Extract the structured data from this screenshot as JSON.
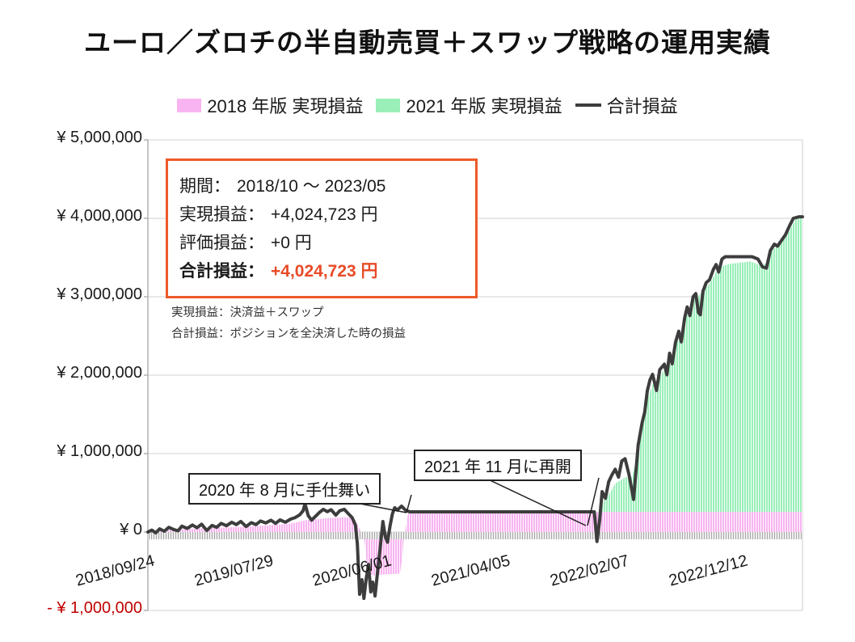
{
  "title": "ユーロ／ズロチの半自動売買＋スワップ戦略の運用実績",
  "legend": [
    {
      "label": "2018 年版 実現損益",
      "type": "area",
      "color": "#f8b4f0"
    },
    {
      "label": "2021 年版 実現損益",
      "type": "area",
      "color": "#9aefb9"
    },
    {
      "label": "合計損益",
      "type": "line",
      "color": "#3d3d3d"
    }
  ],
  "info_box": {
    "rows": [
      {
        "label": "期間：",
        "value": "2018/10 ～ 2023/05",
        "highlight": false
      },
      {
        "label": "実現損益：",
        "value": "+4,024,723 円",
        "highlight": false
      },
      {
        "label": "評価損益：",
        "value": "+0 円",
        "highlight": false
      },
      {
        "label": "合計損益：",
        "value": "+4,024,723 円",
        "highlight": true
      }
    ]
  },
  "notes": [
    "実現損益：決済益＋スワップ",
    "合計損益：ポジションを全決済した時の損益"
  ],
  "callouts": [
    {
      "text": "2020 年 8 月に手仕舞い"
    },
    {
      "text": "2021 年 11 月に再開"
    }
  ],
  "colors": {
    "pink": "#f8b4f0",
    "green": "#9aefb9",
    "line": "#3d3d3d",
    "grid": "#d9d9d9",
    "axis": "#a6a6a6",
    "hatch": "#a8a8a8",
    "box_border": "#ed5a28",
    "highlight_value": "#e84b28",
    "neg_label": "#c00000"
  },
  "chart_data": {
    "type": "area+line",
    "title": "ユーロ／ズロチの半自動売買＋スワップ戦略の運用実績",
    "ylim": [
      -1000000,
      5000000
    ],
    "grid": "horizontal",
    "legend_position": "top-center",
    "y_axis": {
      "ticks": [
        {
          "label": "¥ 5,000,000",
          "value": 5000000,
          "red": false
        },
        {
          "label": "¥ 4,000,000",
          "value": 4000000,
          "red": false
        },
        {
          "label": "¥ 3,000,000",
          "value": 3000000,
          "red": false
        },
        {
          "label": "¥ 2,000,000",
          "value": 2000000,
          "red": false
        },
        {
          "label": "¥ 1,000,000",
          "value": 1000000,
          "red": false
        },
        {
          "label": "¥ 0",
          "value": 0,
          "red": false
        },
        {
          "label": "- ¥ 1,000,000",
          "value": -1000000,
          "red": true
        }
      ]
    },
    "x_axis": {
      "ticks": [
        "2018/09/24",
        "2019/07/29",
        "2020/06/01",
        "2021/04/05",
        "2022/02/07",
        "2022/12/12"
      ]
    },
    "series": [
      {
        "name": "2018年版 実現損益",
        "type": "area",
        "pattern": "pink",
        "base": 0,
        "points": [
          [
            0.0,
            10000
          ],
          [
            0.03,
            25000
          ],
          [
            0.06,
            40000
          ],
          [
            0.09,
            50000
          ],
          [
            0.12,
            60000
          ],
          [
            0.15,
            70000
          ],
          [
            0.18,
            85000
          ],
          [
            0.21,
            100000
          ],
          [
            0.225,
            120000
          ],
          [
            0.24,
            150000
          ],
          [
            0.26,
            165000
          ],
          [
            0.28,
            180000
          ],
          [
            0.3,
            190000
          ],
          [
            0.31,
            180000
          ],
          [
            0.317,
            150000
          ],
          [
            0.322,
            60000
          ],
          [
            0.326,
            0
          ],
          [
            0.329,
            0
          ],
          [
            0.332,
            -200000
          ],
          [
            0.336,
            -520000
          ],
          [
            0.345,
            -555000
          ],
          [
            0.355,
            -545000
          ],
          [
            0.365,
            -540000
          ],
          [
            0.375,
            -535000
          ],
          [
            0.385,
            -530000
          ],
          [
            0.389,
            -300000
          ],
          [
            0.391,
            -80000
          ],
          [
            0.393,
            0
          ],
          [
            0.398,
            258000
          ],
          [
            1.0,
            258000
          ]
        ]
      },
      {
        "name": "2021年版 実現損益",
        "type": "area",
        "pattern": "green",
        "base": 258000,
        "points": [
          [
            0.688,
            258000
          ],
          [
            0.692,
            300000
          ],
          [
            0.698,
            420000
          ],
          [
            0.706,
            500000
          ],
          [
            0.714,
            620000
          ],
          [
            0.722,
            660000
          ],
          [
            0.73,
            700000
          ],
          [
            0.74,
            700000
          ],
          [
            0.748,
            1020000
          ],
          [
            0.756,
            1400000
          ],
          [
            0.764,
            1720000
          ],
          [
            0.772,
            1900000
          ],
          [
            0.78,
            1950000
          ],
          [
            0.79,
            2090000
          ],
          [
            0.8,
            2150000
          ],
          [
            0.81,
            2480000
          ],
          [
            0.82,
            2650000
          ],
          [
            0.83,
            2940000
          ],
          [
            0.84,
            3000000
          ],
          [
            0.85,
            3090000
          ],
          [
            0.86,
            3190000
          ],
          [
            0.87,
            3340000
          ],
          [
            0.88,
            3400000
          ],
          [
            0.89,
            3420000
          ],
          [
            0.9,
            3430000
          ],
          [
            0.91,
            3440000
          ],
          [
            0.92,
            3450000
          ],
          [
            0.93,
            3420000
          ],
          [
            0.94,
            3380000
          ],
          [
            0.95,
            3540000
          ],
          [
            0.96,
            3650000
          ],
          [
            0.97,
            3720000
          ],
          [
            0.98,
            3840000
          ],
          [
            0.99,
            3990000
          ],
          [
            1.0,
            4010000
          ]
        ]
      },
      {
        "name": "合計損益",
        "type": "line",
        "color": "#3d3d3d",
        "points": [
          [
            0.0,
            0
          ],
          [
            0.006,
            25000
          ],
          [
            0.012,
            -10000
          ],
          [
            0.018,
            40000
          ],
          [
            0.025,
            10000
          ],
          [
            0.032,
            60000
          ],
          [
            0.04,
            30000
          ],
          [
            0.046,
            15000
          ],
          [
            0.052,
            75000
          ],
          [
            0.06,
            45000
          ],
          [
            0.068,
            90000
          ],
          [
            0.075,
            55000
          ],
          [
            0.082,
            100000
          ],
          [
            0.09,
            20000
          ],
          [
            0.098,
            85000
          ],
          [
            0.105,
            60000
          ],
          [
            0.112,
            110000
          ],
          [
            0.12,
            80000
          ],
          [
            0.128,
            125000
          ],
          [
            0.135,
            95000
          ],
          [
            0.142,
            135000
          ],
          [
            0.15,
            70000
          ],
          [
            0.158,
            120000
          ],
          [
            0.165,
            95000
          ],
          [
            0.172,
            140000
          ],
          [
            0.18,
            115000
          ],
          [
            0.188,
            150000
          ],
          [
            0.195,
            110000
          ],
          [
            0.202,
            155000
          ],
          [
            0.21,
            125000
          ],
          [
            0.218,
            165000
          ],
          [
            0.225,
            185000
          ],
          [
            0.232,
            220000
          ],
          [
            0.237,
            270000
          ],
          [
            0.24,
            360000
          ],
          [
            0.245,
            210000
          ],
          [
            0.25,
            150000
          ],
          [
            0.256,
            200000
          ],
          [
            0.262,
            250000
          ],
          [
            0.268,
            290000
          ],
          [
            0.274,
            260000
          ],
          [
            0.28,
            285000
          ],
          [
            0.287,
            215000
          ],
          [
            0.293,
            270000
          ],
          [
            0.3,
            290000
          ],
          [
            0.306,
            235000
          ],
          [
            0.312,
            185000
          ],
          [
            0.317,
            90000
          ],
          [
            0.32,
            -150000
          ],
          [
            0.3235,
            -794000
          ],
          [
            0.327,
            -608000
          ],
          [
            0.33,
            -845000
          ],
          [
            0.3335,
            -600000
          ],
          [
            0.337,
            -412000
          ],
          [
            0.3405,
            -763000
          ],
          [
            0.3435,
            -639000
          ],
          [
            0.347,
            -814000
          ],
          [
            0.351,
            -500000
          ],
          [
            0.3555,
            -150000
          ],
          [
            0.359,
            134000
          ],
          [
            0.3625,
            -50000
          ],
          [
            0.366,
            -130000
          ],
          [
            0.37,
            80000
          ],
          [
            0.3735,
            230000
          ],
          [
            0.377,
            310000
          ],
          [
            0.381,
            280000
          ],
          [
            0.3875,
            330000
          ],
          [
            0.3935,
            280000
          ],
          [
            0.4,
            258000
          ],
          [
            0.682,
            258000
          ],
          [
            0.686,
            -120000
          ],
          [
            0.69,
            140000
          ],
          [
            0.694,
            515000
          ],
          [
            0.699,
            430000
          ],
          [
            0.704,
            640000
          ],
          [
            0.709,
            730000
          ],
          [
            0.714,
            800000
          ],
          [
            0.719,
            700000
          ],
          [
            0.724,
            905000
          ],
          [
            0.729,
            935000
          ],
          [
            0.735,
            730000
          ],
          [
            0.742,
            415000
          ],
          [
            0.749,
            1110000
          ],
          [
            0.755,
            1390000
          ],
          [
            0.759,
            1530000
          ],
          [
            0.763,
            1800000
          ],
          [
            0.767,
            1940000
          ],
          [
            0.771,
            2010000
          ],
          [
            0.777,
            1805000
          ],
          [
            0.782,
            2070000
          ],
          [
            0.789,
            2140000
          ],
          [
            0.793,
            2005000
          ],
          [
            0.797,
            2280000
          ],
          [
            0.801,
            2145000
          ],
          [
            0.806,
            2420000
          ],
          [
            0.811,
            2560000
          ],
          [
            0.815,
            2425000
          ],
          [
            0.82,
            2730000
          ],
          [
            0.824,
            2870000
          ],
          [
            0.828,
            2760000
          ],
          [
            0.833,
            3000000
          ],
          [
            0.837,
            3040000
          ],
          [
            0.841,
            2800000
          ],
          [
            0.844,
            2770000
          ],
          [
            0.848,
            3070000
          ],
          [
            0.853,
            3180000
          ],
          [
            0.858,
            3215000
          ],
          [
            0.864,
            3350000
          ],
          [
            0.868,
            3410000
          ],
          [
            0.872,
            3315000
          ],
          [
            0.877,
            3480000
          ],
          [
            0.882,
            3510000
          ],
          [
            0.923,
            3510000
          ],
          [
            0.932,
            3480000
          ],
          [
            0.939,
            3380000
          ],
          [
            0.945,
            3365000
          ],
          [
            0.951,
            3590000
          ],
          [
            0.957,
            3670000
          ],
          [
            0.962,
            3645000
          ],
          [
            0.968,
            3720000
          ],
          [
            0.974,
            3790000
          ],
          [
            0.98,
            3900000
          ],
          [
            0.986,
            4000000
          ],
          [
            0.995,
            4020000
          ],
          [
            1.0,
            4020000
          ]
        ]
      }
    ]
  }
}
